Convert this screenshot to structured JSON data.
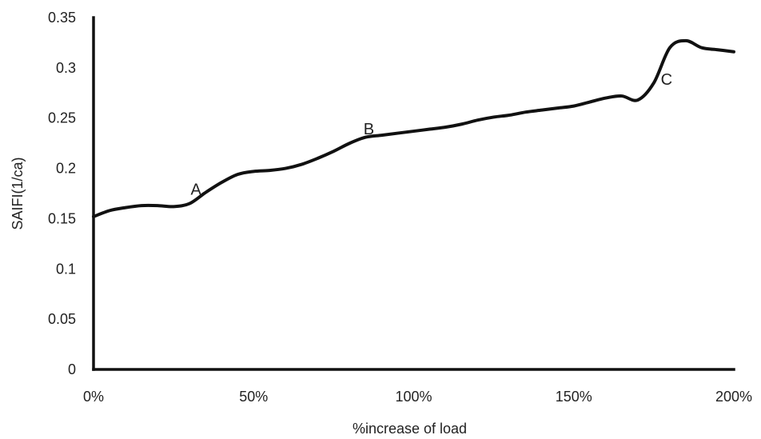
{
  "chart_data": {
    "type": "line",
    "title": "",
    "xlabel": "%increase of load",
    "ylabel": "SAIFI(1/ca)",
    "xlim": [
      0,
      200
    ],
    "ylim": [
      0,
      0.35
    ],
    "x_ticks": [
      {
        "value": 0,
        "label": "0%"
      },
      {
        "value": 50,
        "label": "50%"
      },
      {
        "value": 100,
        "label": "100%"
      },
      {
        "value": 150,
        "label": "150%"
      },
      {
        "value": 200,
        "label": "200%"
      }
    ],
    "y_ticks": [
      {
        "value": 0,
        "label": "0"
      },
      {
        "value": 0.05,
        "label": "0.05"
      },
      {
        "value": 0.1,
        "label": "0.1"
      },
      {
        "value": 0.15,
        "label": "0.15"
      },
      {
        "value": 0.2,
        "label": "0.2"
      },
      {
        "value": 0.25,
        "label": "0.25"
      },
      {
        "value": 0.3,
        "label": "0.3"
      },
      {
        "value": 0.35,
        "label": "0.35"
      }
    ],
    "grid": false,
    "legend": "none",
    "series": [
      {
        "color": "#111111",
        "x": [
          0,
          5,
          10,
          15,
          20,
          25,
          30,
          35,
          40,
          45,
          50,
          55,
          60,
          65,
          70,
          75,
          80,
          85,
          90,
          95,
          100,
          105,
          110,
          115,
          120,
          125,
          130,
          135,
          140,
          145,
          150,
          155,
          160,
          165,
          170,
          175,
          180,
          185,
          190,
          195,
          200
        ],
        "values": [
          0.152,
          0.158,
          0.161,
          0.163,
          0.163,
          0.162,
          0.165,
          0.176,
          0.186,
          0.194,
          0.197,
          0.198,
          0.2,
          0.204,
          0.21,
          0.217,
          0.225,
          0.231,
          0.233,
          0.235,
          0.237,
          0.239,
          0.241,
          0.244,
          0.248,
          0.251,
          0.253,
          0.256,
          0.258,
          0.26,
          0.262,
          0.266,
          0.27,
          0.272,
          0.268,
          0.285,
          0.32,
          0.327,
          0.32,
          0.318,
          0.316
        ]
      }
    ],
    "annotations": [
      {
        "text": "A",
        "x": 32,
        "y": 0.174
      },
      {
        "text": "B",
        "x": 86,
        "y": 0.234
      },
      {
        "text": "C",
        "x": 179,
        "y": 0.283
      }
    ]
  }
}
